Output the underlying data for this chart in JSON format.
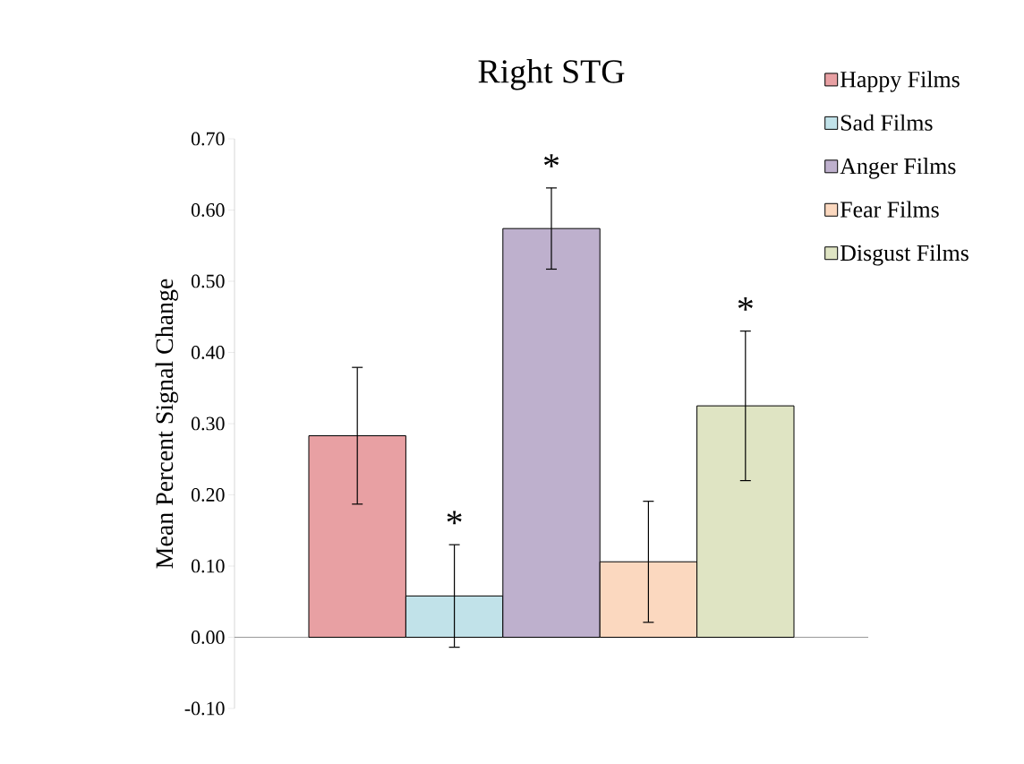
{
  "chart_data": {
    "type": "bar",
    "title": "Right STG",
    "ylabel": "Mean Percent Signal Change",
    "categories": [
      null
    ],
    "series": [
      {
        "name": "Happy Films",
        "color": "#e8a0a3",
        "values": [
          0.283
        ],
        "errors": [
          0.096
        ],
        "value_labels": [
          null
        ]
      },
      {
        "name": "Sad Films",
        "color": "#c1e2e9",
        "values": [
          0.058
        ],
        "errors": [
          0.072
        ],
        "value_labels": [
          "*"
        ]
      },
      {
        "name": "Anger Films",
        "color": "#beb0cd",
        "values": [
          0.574
        ],
        "errors": [
          0.057
        ],
        "value_labels": [
          "*"
        ]
      },
      {
        "name": "Fear Films",
        "color": "#fbd8bf",
        "values": [
          0.106
        ],
        "errors": [
          0.085
        ],
        "value_labels": [
          null
        ]
      },
      {
        "name": "Disgust Films",
        "color": "#dfe4c3",
        "values": [
          0.325
        ],
        "errors": [
          0.105
        ],
        "value_labels": [
          "*"
        ]
      }
    ],
    "ylim": [
      -0.1,
      0.7
    ],
    "yticks": [
      {
        "value": -0.1,
        "label": "-0.10"
      },
      {
        "value": 0,
        "label": "0.00"
      },
      {
        "value": 0.1,
        "label": "0.10"
      },
      {
        "value": 0.2,
        "label": "0.20"
      },
      {
        "value": 0.3,
        "label": "0.30"
      },
      {
        "value": 0.4,
        "label": "0.40"
      },
      {
        "value": 0.5,
        "label": "0.50"
      },
      {
        "value": 0.6,
        "label": "0.60"
      },
      {
        "value": 0.7,
        "label": "0.70"
      }
    ],
    "legend": "top right"
  }
}
